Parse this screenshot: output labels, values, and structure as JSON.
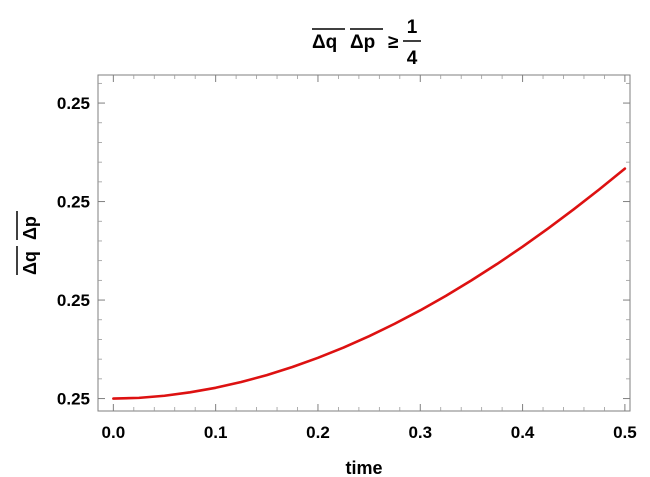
{
  "chart_data": {
    "type": "line",
    "title": {
      "lhs_a": "Δq",
      "lhs_b": "Δp",
      "relation": "≥",
      "numerator": "1",
      "denominator": "4"
    },
    "xlabel": "time",
    "ylabel": {
      "a": "Δq",
      "b": "Δp"
    },
    "xlim": [
      -0.015,
      0.505
    ],
    "ylim": [
      0.24999998,
      0.25000052
    ],
    "x_ticks": [
      0.0,
      0.1,
      0.2,
      0.3,
      0.4,
      0.5
    ],
    "x_tick_labels": [
      "0.0",
      "0.1",
      "0.2",
      "0.3",
      "0.4",
      "0.5"
    ],
    "y_ticks": [
      0.25,
      0.2500001583,
      0.2500003166,
      0.2500004749
    ],
    "y_tick_labels": [
      "0.25",
      "0.25",
      "0.25",
      "0.25"
    ],
    "series": [
      {
        "color": "#dd1111",
        "x": [
          0.0,
          0.025,
          0.05,
          0.075,
          0.1,
          0.125,
          0.15,
          0.175,
          0.2,
          0.225,
          0.25,
          0.275,
          0.3,
          0.325,
          0.35,
          0.375,
          0.4,
          0.425,
          0.45,
          0.475,
          0.5
        ],
        "y": [
          0.25,
          0.2500000011,
          0.2500000045,
          0.25000001,
          0.2500000173,
          0.2500000266,
          0.2500000377,
          0.2500000507,
          0.2500000655,
          0.250000082,
          0.2500001003,
          0.2500001202,
          0.2500001418,
          0.2500001651,
          0.2500001899,
          0.2500002162,
          0.2500002441,
          0.2500002734,
          0.2500003041,
          0.2500003362,
          0.2500003696
        ]
      }
    ]
  }
}
